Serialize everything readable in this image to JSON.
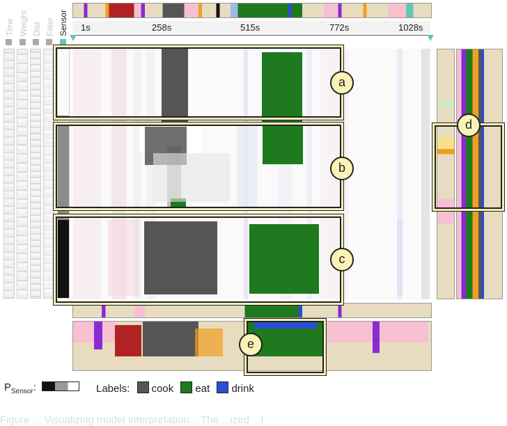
{
  "feature_labels": [
    "Time",
    "Weight",
    "Dist",
    "Filter",
    "Sensor"
  ],
  "active_feature": "Sensor",
  "timeline": {
    "ticks": [
      "1s",
      "258s",
      "515s",
      "772s",
      "1028s"
    ]
  },
  "callouts": [
    "a",
    "b",
    "c",
    "d",
    "e"
  ],
  "legend": {
    "p_label": "P",
    "p_sub": "Sensor",
    "p_suffix": ":",
    "labels_title": "Labels:",
    "items": [
      {
        "name": "cook",
        "color": "#555555"
      },
      {
        "name": "eat",
        "color": "#1f7a1f"
      },
      {
        "name": "drink",
        "color": "#2a4fd6"
      }
    ]
  },
  "colors": {
    "cook": "#555555",
    "eat": "#1f7a1f",
    "drink": "#2a4fd6",
    "accent_teal": "#63c8b4",
    "highlight": "#f3efb8",
    "beige": "#e8dcc0"
  },
  "caption": "Figure ... Visualizing model interpretation... The ...ized ...l"
}
